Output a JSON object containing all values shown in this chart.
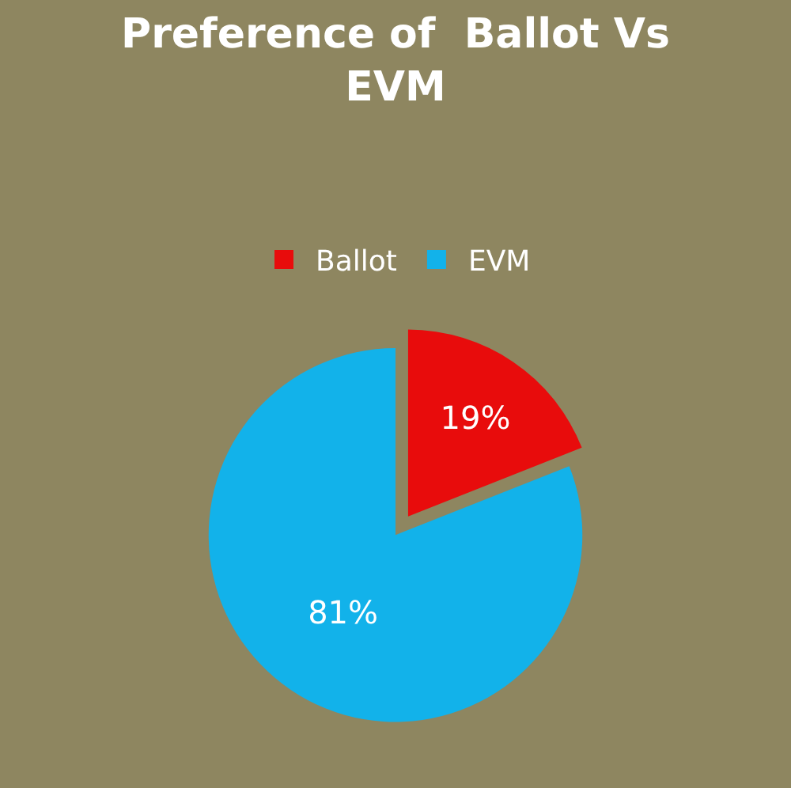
{
  "chart_data": {
    "type": "pie",
    "title": "Preference of  Ballot Vs EVM",
    "categories": [
      "Ballot",
      "EVM"
    ],
    "values": [
      19,
      81
    ],
    "colors": [
      "#e80c0c",
      "#12b2ea"
    ],
    "value_labels": [
      "19%",
      "81%"
    ],
    "legend": "top"
  }
}
